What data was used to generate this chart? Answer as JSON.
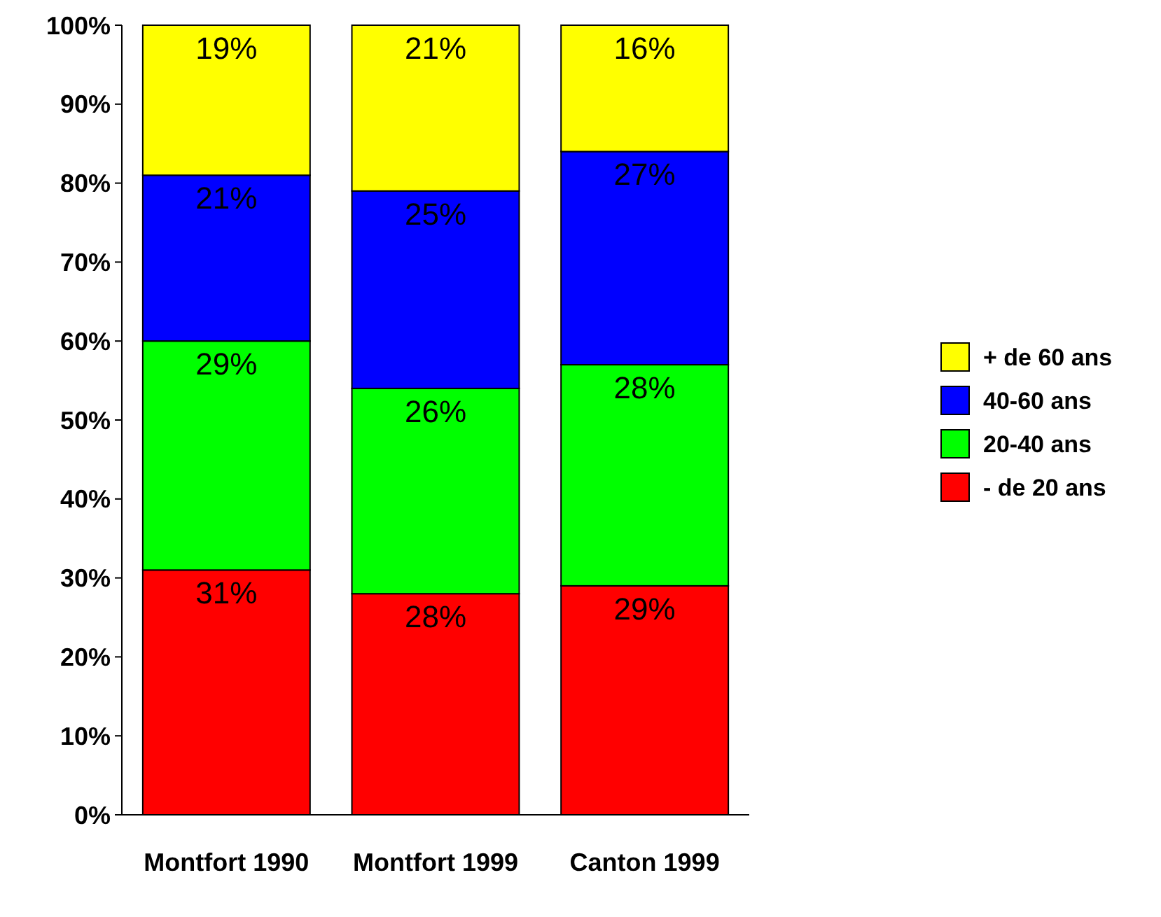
{
  "chart_data": {
    "type": "bar",
    "stacked": true,
    "categories": [
      "Montfort 1990",
      "Montfort 1999",
      "Canton 1999"
    ],
    "series": [
      {
        "name": "- de 20 ans",
        "color": "#ff0000",
        "values": [
          31,
          28,
          29
        ],
        "value_labels": [
          "31%",
          "28%",
          "29%"
        ]
      },
      {
        "name": "20-40 ans",
        "color": "#00ff00",
        "values": [
          29,
          26,
          28
        ],
        "value_labels": [
          "29%",
          "26%",
          "28%"
        ]
      },
      {
        "name": "40-60 ans",
        "color": "#0000ff",
        "values": [
          21,
          25,
          27
        ],
        "value_labels": [
          "21%",
          "25%",
          "27%"
        ]
      },
      {
        "name": "+ de 60 ans",
        "color": "#ffff00",
        "values": [
          19,
          21,
          16
        ],
        "value_labels": [
          "19%",
          "21%",
          "16%"
        ]
      }
    ],
    "ylim": [
      0,
      100
    ],
    "yticks": [
      {
        "value": 0,
        "label": "0%"
      },
      {
        "value": 10,
        "label": "10%"
      },
      {
        "value": 20,
        "label": "20%"
      },
      {
        "value": 30,
        "label": "30%"
      },
      {
        "value": 40,
        "label": "40%"
      },
      {
        "value": 50,
        "label": "50%"
      },
      {
        "value": 60,
        "label": "60%"
      },
      {
        "value": 70,
        "label": "70%"
      },
      {
        "value": 80,
        "label": "80%"
      },
      {
        "value": 90,
        "label": "90%"
      },
      {
        "value": 100,
        "label": "100%"
      }
    ],
    "grid": false,
    "legend": "right"
  }
}
